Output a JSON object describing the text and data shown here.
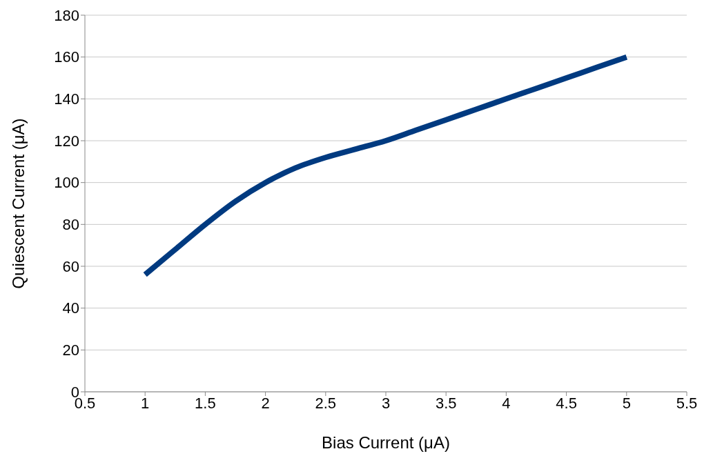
{
  "chart_data": {
    "type": "line",
    "xlabel": "Bias Current (μA)",
    "ylabel": "Quiescent Current (μA)",
    "x": [
      1,
      1.25,
      1.5,
      1.75,
      2,
      2.25,
      2.5,
      2.75,
      3,
      3.25,
      3.5,
      3.75,
      4,
      4.25,
      4.5,
      4.75,
      5
    ],
    "series": [
      {
        "color": "#003a80",
        "values": [
          56,
          68,
          80,
          91,
          100,
          107,
          112,
          116,
          120,
          125,
          130,
          135,
          140,
          145,
          150,
          155,
          160
        ]
      }
    ],
    "xlim": [
      0.5,
      5.5
    ],
    "xticks": [
      0.5,
      1,
      1.5,
      2,
      2.5,
      3,
      3.5,
      4,
      4.5,
      5,
      5.5
    ],
    "ylim": [
      0,
      180
    ],
    "yticks": [
      0,
      20,
      40,
      60,
      80,
      100,
      120,
      140,
      160,
      180
    ],
    "grid": "y",
    "marker": "none",
    "line_style": "solid"
  }
}
